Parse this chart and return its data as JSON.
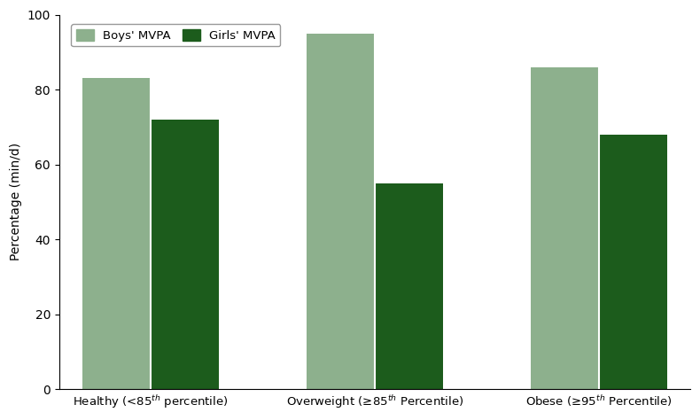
{
  "boys_values": [
    83,
    95,
    86
  ],
  "girls_values": [
    72,
    55,
    68
  ],
  "boys_color": "#8db08d",
  "girls_color": "#1c5c1c",
  "ylabel": "Percentage (min/d)",
  "ylim": [
    0,
    100
  ],
  "yticks": [
    0,
    20,
    40,
    60,
    80,
    100
  ],
  "legend_boys": "Boys' MVPA",
  "legend_girls": "Girls' MVPA",
  "bar_width": 0.42,
  "group_positions": [
    0.5,
    1.9,
    3.3
  ],
  "figure_width": 7.9,
  "figure_height": 4.74,
  "dpi": 100
}
